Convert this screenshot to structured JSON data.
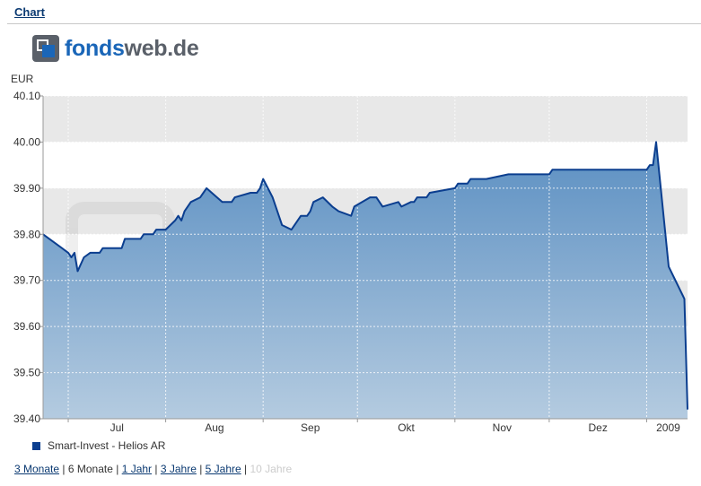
{
  "header": {
    "link_label": "Chart"
  },
  "logo": {
    "part1": "fonds",
    "part2": "web.de"
  },
  "colors": {
    "line": "#0b3e8f",
    "fill_top": "#5b8fc2",
    "fill_bottom": "#b4cbe0",
    "band": "#e8e8e8",
    "link": "#0b3a72"
  },
  "chart_data": {
    "type": "area",
    "ylabel": "EUR",
    "ylim": [
      39.4,
      40.1
    ],
    "y_ticks": [
      "39.40",
      "39.50",
      "39.60",
      "39.70",
      "39.80",
      "39.90",
      "40.00",
      "40.10"
    ],
    "x_ticks": [
      "Jul",
      "Aug",
      "Sep",
      "Okt",
      "Nov",
      "Dez",
      "2009"
    ],
    "x_tick_dates": [
      "2008-07-01",
      "2008-08-01",
      "2008-09-01",
      "2008-10-01",
      "2008-11-01",
      "2008-12-01",
      "2009-01-01"
    ],
    "x_range": [
      "2008-06-23",
      "2009-01-14"
    ],
    "grid": true,
    "legend": "bottom-left",
    "series": [
      {
        "name": "Smart-Invest - Helios AR",
        "x": [
          "2008-06-23",
          "2008-06-25",
          "2008-06-27",
          "2008-06-29",
          "2008-07-01",
          "2008-07-02",
          "2008-07-03",
          "2008-07-04",
          "2008-07-06",
          "2008-07-08",
          "2008-07-11",
          "2008-07-12",
          "2008-07-18",
          "2008-07-19",
          "2008-07-24",
          "2008-07-25",
          "2008-07-28",
          "2008-07-29",
          "2008-08-01",
          "2008-08-04",
          "2008-08-05",
          "2008-08-06",
          "2008-08-07",
          "2008-08-09",
          "2008-08-12",
          "2008-08-13",
          "2008-08-14",
          "2008-08-19",
          "2008-08-20",
          "2008-08-22",
          "2008-08-23",
          "2008-08-28",
          "2008-08-29",
          "2008-08-30",
          "2008-08-31",
          "2008-09-01",
          "2008-09-04",
          "2008-09-06",
          "2008-09-07",
          "2008-09-10",
          "2008-09-13",
          "2008-09-15",
          "2008-09-16",
          "2008-09-17",
          "2008-09-20",
          "2008-09-23",
          "2008-09-25",
          "2008-09-29",
          "2008-09-30",
          "2008-10-05",
          "2008-10-07",
          "2008-10-08",
          "2008-10-09",
          "2008-10-14",
          "2008-10-15",
          "2008-10-18",
          "2008-10-19",
          "2008-10-20",
          "2008-10-23",
          "2008-10-24",
          "2008-11-01",
          "2008-11-02",
          "2008-11-05",
          "2008-11-06",
          "2008-11-10",
          "2008-11-11",
          "2008-11-18",
          "2008-11-19",
          "2008-12-01",
          "2008-12-02",
          "2008-12-21",
          "2009-01-01",
          "2009-01-02",
          "2009-01-03",
          "2009-01-04",
          "2009-01-08",
          "2009-01-13"
        ],
        "values": [
          39.8,
          39.79,
          39.78,
          39.77,
          39.76,
          39.75,
          39.76,
          39.72,
          39.75,
          39.76,
          39.76,
          39.77,
          39.77,
          39.79,
          39.79,
          39.8,
          39.8,
          39.81,
          39.81,
          39.83,
          39.84,
          39.83,
          39.85,
          39.87,
          39.88,
          39.89,
          39.9,
          39.87,
          39.87,
          39.87,
          39.88,
          39.89,
          39.89,
          39.89,
          39.9,
          39.92,
          39.88,
          39.84,
          39.82,
          39.81,
          39.84,
          39.84,
          39.85,
          39.87,
          39.88,
          39.86,
          39.85,
          39.84,
          39.86,
          39.88,
          39.88,
          39.87,
          39.86,
          39.87,
          39.86,
          39.87,
          39.87,
          39.88,
          39.88,
          39.89,
          39.9,
          39.91,
          39.91,
          39.92,
          39.92,
          39.92,
          39.93,
          39.93,
          39.93,
          39.94,
          39.94,
          39.94,
          39.95,
          39.95,
          40.0,
          39.73,
          39.66
        ]
      }
    ]
  },
  "extra_points": {
    "final_date": "2009-01-14",
    "final_value": 39.42
  },
  "range_links": [
    {
      "label": "3 Monate",
      "state": "link"
    },
    {
      "label": "6 Monate",
      "state": "current"
    },
    {
      "label": "1 Jahr",
      "state": "link"
    },
    {
      "label": "3 Jahre",
      "state": "link"
    },
    {
      "label": "5 Jahre",
      "state": "link"
    },
    {
      "label": "10 Jahre",
      "state": "disabled"
    }
  ],
  "range_separator": "|"
}
